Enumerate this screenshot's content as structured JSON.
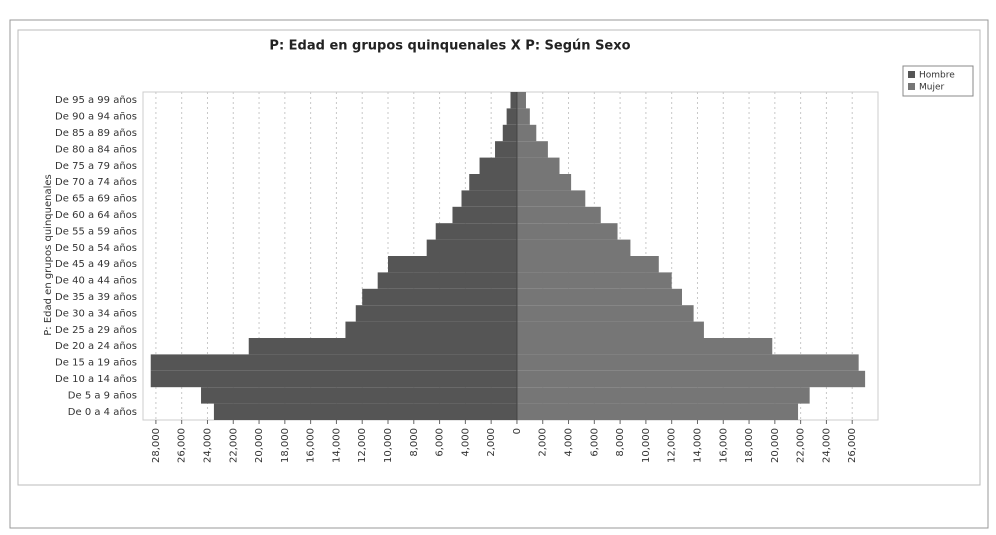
{
  "chart_data": {
    "type": "pyramid",
    "title": "P: Edad en grupos quinquenales X P: Según Sexo",
    "y_label": "P: Edad en grupos quinquenales",
    "categories": [
      "De 0 a 4 años",
      "De 5 a 9 años",
      "De 10 a 14 años",
      "De 15 a 19 años",
      "De 20 a 24 años",
      "De 25 a 29 años",
      "De 30 a 34 años",
      "De 35 a 39 años",
      "De 40 a 44 años",
      "De 45 a 49 años",
      "De 50 a 54 años",
      "De 55 a 59 años",
      "De 60 a 64 años",
      "De 65 a 69 años",
      "De 70 a 74 años",
      "De 75 a 79 años",
      "De 80 a 84 años",
      "De 85 a 89 años",
      "De 90 a 94 años",
      "De 95 a 99 años"
    ],
    "series": [
      {
        "name": "Hombre",
        "color": "#555555",
        "values": [
          -23500,
          -24500,
          -28400,
          -28400,
          -20800,
          -13300,
          -12500,
          -12000,
          -10800,
          -10000,
          -7000,
          -6300,
          -5000,
          -4300,
          -3700,
          -2900,
          -1700,
          -1100,
          -800,
          -500
        ]
      },
      {
        "name": "Mujer",
        "color": "#767676",
        "values": [
          21800,
          22700,
          27000,
          26500,
          19800,
          14500,
          13700,
          12800,
          12000,
          11000,
          8800,
          7800,
          6500,
          5300,
          4200,
          3300,
          2400,
          1500,
          1000,
          700
        ]
      }
    ],
    "xlim": [
      -29000,
      28000
    ],
    "xticks": [
      {
        "value": -28000,
        "label": "28,000"
      },
      {
        "value": -26000,
        "label": "26,000"
      },
      {
        "value": -24000,
        "label": "24,000"
      },
      {
        "value": -22000,
        "label": "22,000"
      },
      {
        "value": -20000,
        "label": "20,000"
      },
      {
        "value": -18000,
        "label": "18,000"
      },
      {
        "value": -16000,
        "label": "16,000"
      },
      {
        "value": -14000,
        "label": "14,000"
      },
      {
        "value": -12000,
        "label": "12,000"
      },
      {
        "value": -10000,
        "label": "10,000"
      },
      {
        "value": -8000,
        "label": "8,000"
      },
      {
        "value": -6000,
        "label": "6,000"
      },
      {
        "value": -4000,
        "label": "4,000"
      },
      {
        "value": -2000,
        "label": "2,000"
      },
      0,
      {
        "value": 2000,
        "label": "2,000"
      },
      {
        "value": 4000,
        "label": "4,000"
      },
      {
        "value": 6000,
        "label": "6,000"
      },
      {
        "value": 8000,
        "label": "8,000"
      },
      {
        "value": 10000,
        "label": "10,000"
      },
      {
        "value": 12000,
        "label": "12,000"
      },
      {
        "value": 14000,
        "label": "14,000"
      },
      {
        "value": 16000,
        "label": "16,000"
      },
      {
        "value": 18000,
        "label": "18,000"
      },
      {
        "value": 20000,
        "label": "20,000"
      },
      {
        "value": 22000,
        "label": "22,000"
      },
      {
        "value": 24000,
        "label": "24,000"
      },
      {
        "value": 26000,
        "label": "26,000"
      }
    ],
    "grid": true
  }
}
